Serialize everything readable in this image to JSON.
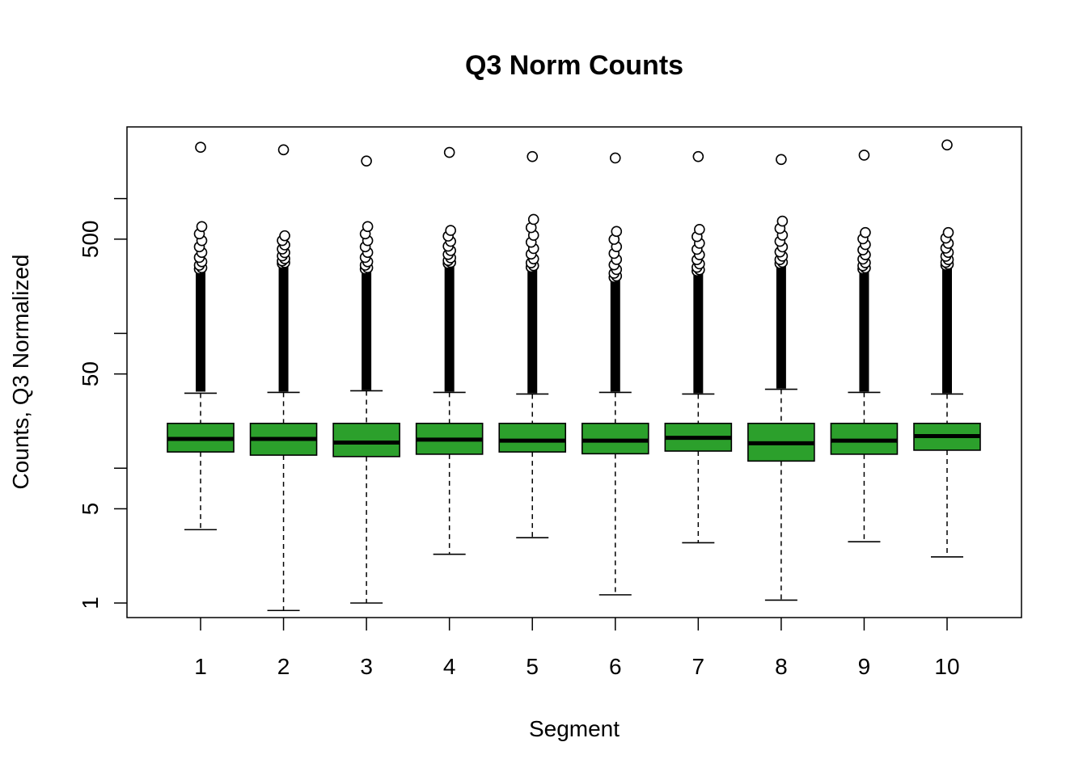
{
  "chart_data": {
    "type": "boxplot",
    "title": "Q3 Norm Counts",
    "xlabel": "Segment",
    "ylabel": "Counts, Q3 Normalized",
    "y_scale": "log",
    "ylim": [
      0.78,
      3400
    ],
    "y_ticks": [
      1,
      5,
      50,
      500
    ],
    "y_tick_labels": [
      "1",
      "5",
      "50",
      "500"
    ],
    "y_minor_ticks": [
      10,
      100,
      1000
    ],
    "grid": false,
    "box_color": "#2ca02c",
    "categories": [
      "1",
      "2",
      "3",
      "4",
      "5",
      "6",
      "7",
      "8",
      "9",
      "10"
    ],
    "boxes": [
      {
        "segment": "1",
        "whisker_low": 3.5,
        "q1": 13.2,
        "median": 16.5,
        "q3": 21.5,
        "whisker_high": 36,
        "outlier_min": 37,
        "outlier_dense_max": 300,
        "outlier_scattered_max": 620,
        "outlier_max": 2400
      },
      {
        "segment": "2",
        "whisker_low": 0.88,
        "q1": 12.5,
        "median": 16.5,
        "q3": 21.5,
        "whisker_high": 36.5,
        "outlier_min": 37,
        "outlier_dense_max": 330,
        "outlier_scattered_max": 530,
        "outlier_max": 2300
      },
      {
        "segment": "3",
        "whisker_low": 1.0,
        "q1": 12.2,
        "median": 15.5,
        "q3": 21.5,
        "whisker_high": 37.5,
        "outlier_min": 38,
        "outlier_dense_max": 300,
        "outlier_scattered_max": 620,
        "outlier_max": 1900
      },
      {
        "segment": "4",
        "whisker_low": 2.3,
        "q1": 12.7,
        "median": 16.3,
        "q3": 21.5,
        "whisker_high": 36.5,
        "outlier_min": 37,
        "outlier_dense_max": 330,
        "outlier_scattered_max": 580,
        "outlier_max": 2200
      },
      {
        "segment": "5",
        "whisker_low": 3.05,
        "q1": 13.2,
        "median": 16.0,
        "q3": 21.5,
        "whisker_high": 35.5,
        "outlier_min": 36,
        "outlier_dense_max": 310,
        "outlier_scattered_max": 700,
        "outlier_max": 2050
      },
      {
        "segment": "6",
        "whisker_low": 1.15,
        "q1": 12.8,
        "median": 16.0,
        "q3": 21.5,
        "whisker_high": 36.5,
        "outlier_min": 37,
        "outlier_dense_max": 260,
        "outlier_scattered_max": 570,
        "outlier_max": 2000
      },
      {
        "segment": "7",
        "whisker_low": 2.8,
        "q1": 13.4,
        "median": 16.8,
        "q3": 21.5,
        "whisker_high": 35.5,
        "outlier_min": 36,
        "outlier_dense_max": 290,
        "outlier_scattered_max": 590,
        "outlier_max": 2050
      },
      {
        "segment": "8",
        "whisker_low": 1.05,
        "q1": 11.3,
        "median": 15.3,
        "q3": 21.5,
        "whisker_high": 38.5,
        "outlier_min": 39,
        "outlier_dense_max": 330,
        "outlier_scattered_max": 680,
        "outlier_max": 1950
      },
      {
        "segment": "9",
        "whisker_low": 2.85,
        "q1": 12.7,
        "median": 16.0,
        "q3": 21.5,
        "whisker_high": 36.5,
        "outlier_min": 37,
        "outlier_dense_max": 300,
        "outlier_scattered_max": 560,
        "outlier_max": 2100
      },
      {
        "segment": "10",
        "whisker_low": 2.2,
        "q1": 13.6,
        "median": 17.3,
        "q3": 21.5,
        "whisker_high": 35.5,
        "outlier_min": 36,
        "outlier_dense_max": 320,
        "outlier_scattered_max": 560,
        "outlier_max": 2500
      }
    ]
  }
}
